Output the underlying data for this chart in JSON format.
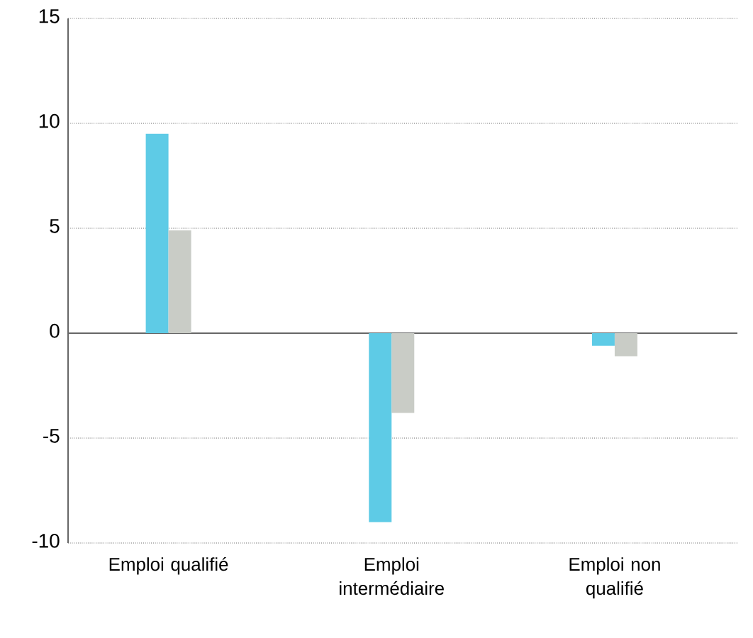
{
  "chart_data": {
    "type": "bar",
    "categories": [
      "Emploi qualifié",
      "Emploi intermédiaire",
      "Emploi non qualifié"
    ],
    "series": [
      {
        "color": "#5ecbe6",
        "values": [
          9.5,
          -9.0,
          -0.6
        ]
      },
      {
        "color": "#c9ccc6",
        "values": [
          4.9,
          -3.8,
          -1.1
        ]
      }
    ],
    "ylim": [
      -10,
      15
    ],
    "yticks": [
      -10,
      -5,
      0,
      5,
      10,
      15
    ],
    "grid": "y"
  }
}
